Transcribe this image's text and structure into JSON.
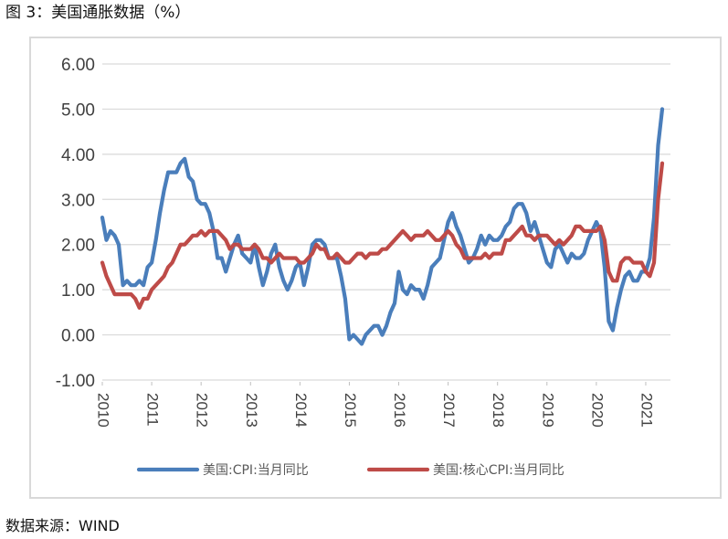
{
  "figure": {
    "title": "图 3：美国通胀数据（%）",
    "source": "数据来源：WIND"
  },
  "colors": {
    "cpi": "#4a7ebb",
    "core": "#be4b48",
    "grid": "#d9d9d9",
    "axis_text": "#404040"
  },
  "chart_data": {
    "type": "line",
    "title": "",
    "xlabel": "",
    "ylabel": "",
    "ylim": [
      -1,
      6
    ],
    "xlim": [
      2010,
      2021.5
    ],
    "y_ticks": [
      "-1.00",
      "0.00",
      "1.00",
      "2.00",
      "3.00",
      "4.00",
      "5.00",
      "6.00"
    ],
    "x_ticks": [
      "2010",
      "2011",
      "2012",
      "2013",
      "2014",
      "2015",
      "2016",
      "2017",
      "2018",
      "2019",
      "2020",
      "2021"
    ],
    "grid": true,
    "legend_position": "bottom",
    "series": [
      {
        "name": "美国:CPI:当月同比",
        "color": "#4a7ebb",
        "x": [
          2010.0,
          2010.083,
          2010.167,
          2010.25,
          2010.333,
          2010.417,
          2010.5,
          2010.583,
          2010.667,
          2010.75,
          2010.833,
          2010.917,
          2011.0,
          2011.083,
          2011.167,
          2011.25,
          2011.333,
          2011.417,
          2011.5,
          2011.583,
          2011.667,
          2011.75,
          2011.833,
          2011.917,
          2012.0,
          2012.083,
          2012.167,
          2012.25,
          2012.333,
          2012.417,
          2012.5,
          2012.583,
          2012.667,
          2012.75,
          2012.833,
          2012.917,
          2013.0,
          2013.083,
          2013.167,
          2013.25,
          2013.333,
          2013.417,
          2013.5,
          2013.583,
          2013.667,
          2013.75,
          2013.833,
          2013.917,
          2014.0,
          2014.083,
          2014.167,
          2014.25,
          2014.333,
          2014.417,
          2014.5,
          2014.583,
          2014.667,
          2014.75,
          2014.833,
          2014.917,
          2015.0,
          2015.083,
          2015.167,
          2015.25,
          2015.333,
          2015.417,
          2015.5,
          2015.583,
          2015.667,
          2015.75,
          2015.833,
          2015.917,
          2016.0,
          2016.083,
          2016.167,
          2016.25,
          2016.333,
          2016.417,
          2016.5,
          2016.583,
          2016.667,
          2016.75,
          2016.833,
          2016.917,
          2017.0,
          2017.083,
          2017.167,
          2017.25,
          2017.333,
          2017.417,
          2017.5,
          2017.583,
          2017.667,
          2017.75,
          2017.833,
          2017.917,
          2018.0,
          2018.083,
          2018.167,
          2018.25,
          2018.333,
          2018.417,
          2018.5,
          2018.583,
          2018.667,
          2018.75,
          2018.833,
          2018.917,
          2019.0,
          2019.083,
          2019.167,
          2019.25,
          2019.333,
          2019.417,
          2019.5,
          2019.583,
          2019.667,
          2019.75,
          2019.833,
          2019.917,
          2020.0,
          2020.083,
          2020.167,
          2020.25,
          2020.333,
          2020.417,
          2020.5,
          2020.583,
          2020.667,
          2020.75,
          2020.833,
          2020.917,
          2021.0,
          2021.083,
          2021.167,
          2021.25,
          2021.333
        ],
        "values": [
          2.6,
          2.1,
          2.3,
          2.2,
          2.0,
          1.1,
          1.2,
          1.1,
          1.1,
          1.2,
          1.1,
          1.5,
          1.6,
          2.1,
          2.7,
          3.2,
          3.6,
          3.6,
          3.6,
          3.8,
          3.9,
          3.5,
          3.4,
          3.0,
          2.9,
          2.9,
          2.7,
          2.3,
          1.7,
          1.7,
          1.4,
          1.7,
          2.0,
          2.2,
          1.8,
          1.7,
          1.6,
          2.0,
          1.5,
          1.1,
          1.4,
          1.8,
          2.0,
          1.5,
          1.2,
          1.0,
          1.2,
          1.5,
          1.6,
          1.1,
          1.5,
          2.0,
          2.1,
          2.1,
          2.0,
          1.7,
          1.7,
          1.7,
          1.3,
          0.8,
          -0.1,
          0.0,
          -0.1,
          -0.2,
          0.0,
          0.1,
          0.2,
          0.2,
          0.0,
          0.2,
          0.5,
          0.7,
          1.4,
          1.0,
          0.9,
          1.1,
          1.0,
          1.0,
          0.8,
          1.1,
          1.5,
          1.6,
          1.7,
          2.1,
          2.5,
          2.7,
          2.4,
          2.2,
          1.9,
          1.6,
          1.7,
          1.9,
          2.2,
          2.0,
          2.2,
          2.1,
          2.1,
          2.2,
          2.4,
          2.5,
          2.8,
          2.9,
          2.9,
          2.7,
          2.3,
          2.5,
          2.2,
          1.9,
          1.6,
          1.5,
          1.9,
          2.0,
          1.8,
          1.6,
          1.8,
          1.7,
          1.7,
          1.8,
          2.1,
          2.3,
          2.5,
          2.3,
          1.5,
          0.3,
          0.1,
          0.6,
          1.0,
          1.3,
          1.4,
          1.2,
          1.2,
          1.4,
          1.4,
          1.7,
          2.6,
          4.2,
          5.0
        ]
      },
      {
        "name": "美国:核心CPI:当月同比",
        "color": "#be4b48",
        "x": [
          2010.0,
          2010.083,
          2010.167,
          2010.25,
          2010.333,
          2010.417,
          2010.5,
          2010.583,
          2010.667,
          2010.75,
          2010.833,
          2010.917,
          2011.0,
          2011.083,
          2011.167,
          2011.25,
          2011.333,
          2011.417,
          2011.5,
          2011.583,
          2011.667,
          2011.75,
          2011.833,
          2011.917,
          2012.0,
          2012.083,
          2012.167,
          2012.25,
          2012.333,
          2012.417,
          2012.5,
          2012.583,
          2012.667,
          2012.75,
          2012.833,
          2012.917,
          2013.0,
          2013.083,
          2013.167,
          2013.25,
          2013.333,
          2013.417,
          2013.5,
          2013.583,
          2013.667,
          2013.75,
          2013.833,
          2013.917,
          2014.0,
          2014.083,
          2014.167,
          2014.25,
          2014.333,
          2014.417,
          2014.5,
          2014.583,
          2014.667,
          2014.75,
          2014.833,
          2014.917,
          2015.0,
          2015.083,
          2015.167,
          2015.25,
          2015.333,
          2015.417,
          2015.5,
          2015.583,
          2015.667,
          2015.75,
          2015.833,
          2015.917,
          2016.0,
          2016.083,
          2016.167,
          2016.25,
          2016.333,
          2016.417,
          2016.5,
          2016.583,
          2016.667,
          2016.75,
          2016.833,
          2016.917,
          2017.0,
          2017.083,
          2017.167,
          2017.25,
          2017.333,
          2017.417,
          2017.5,
          2017.583,
          2017.667,
          2017.75,
          2017.833,
          2017.917,
          2018.0,
          2018.083,
          2018.167,
          2018.25,
          2018.333,
          2018.417,
          2018.5,
          2018.583,
          2018.667,
          2018.75,
          2018.833,
          2018.917,
          2019.0,
          2019.083,
          2019.167,
          2019.25,
          2019.333,
          2019.417,
          2019.5,
          2019.583,
          2019.667,
          2019.75,
          2019.833,
          2019.917,
          2020.0,
          2020.083,
          2020.167,
          2020.25,
          2020.333,
          2020.417,
          2020.5,
          2020.583,
          2020.667,
          2020.75,
          2020.833,
          2020.917,
          2021.0,
          2021.083,
          2021.167,
          2021.25,
          2021.333
        ],
        "values": [
          1.6,
          1.3,
          1.1,
          0.9,
          0.9,
          0.9,
          0.9,
          0.9,
          0.8,
          0.6,
          0.8,
          0.8,
          1.0,
          1.1,
          1.2,
          1.3,
          1.5,
          1.6,
          1.8,
          2.0,
          2.0,
          2.1,
          2.2,
          2.2,
          2.3,
          2.2,
          2.3,
          2.3,
          2.3,
          2.2,
          2.1,
          1.9,
          2.0,
          2.0,
          1.9,
          1.9,
          1.9,
          2.0,
          1.9,
          1.7,
          1.7,
          1.6,
          1.7,
          1.8,
          1.7,
          1.7,
          1.7,
          1.7,
          1.6,
          1.6,
          1.7,
          1.8,
          2.0,
          1.9,
          1.9,
          1.7,
          1.7,
          1.8,
          1.7,
          1.6,
          1.6,
          1.7,
          1.8,
          1.8,
          1.7,
          1.8,
          1.8,
          1.8,
          1.9,
          1.9,
          2.0,
          2.1,
          2.2,
          2.3,
          2.2,
          2.1,
          2.2,
          2.2,
          2.2,
          2.3,
          2.2,
          2.1,
          2.1,
          2.2,
          2.3,
          2.2,
          2.0,
          1.9,
          1.7,
          1.7,
          1.7,
          1.7,
          1.7,
          1.8,
          1.7,
          1.8,
          1.8,
          1.8,
          2.1,
          2.1,
          2.2,
          2.3,
          2.4,
          2.2,
          2.2,
          2.1,
          2.2,
          2.2,
          2.2,
          2.1,
          2.0,
          2.1,
          2.0,
          2.1,
          2.2,
          2.4,
          2.4,
          2.3,
          2.3,
          2.3,
          2.3,
          2.4,
          2.1,
          1.4,
          1.2,
          1.2,
          1.6,
          1.7,
          1.7,
          1.6,
          1.6,
          1.6,
          1.4,
          1.3,
          1.6,
          3.0,
          3.8
        ]
      }
    ]
  }
}
